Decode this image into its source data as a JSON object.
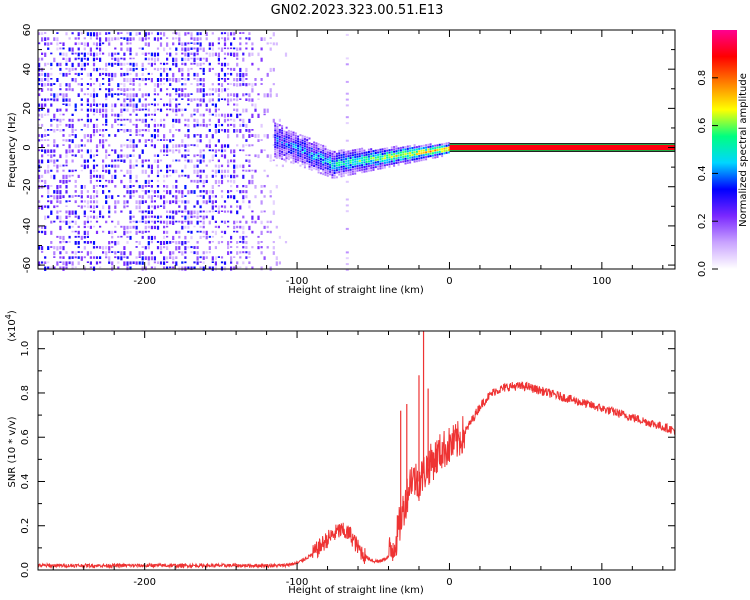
{
  "title": "GN02.2023.323.00.51.E13",
  "chart_data": [
    {
      "type": "heatmap",
      "description_kind": "spectrogram",
      "xlabel": "Height of straight line (km)",
      "ylabel": "Frequency (Hz)",
      "xlim": [
        -270,
        148
      ],
      "ylim": [
        -62,
        60
      ],
      "xticks": [
        -200,
        -100,
        0,
        100
      ],
      "yticks": [
        60,
        40,
        20,
        0,
        -20,
        -40,
        -60
      ],
      "colorbar": {
        "label": "Normalized spectral amplitude",
        "range": [
          0,
          1
        ],
        "ticks": [
          0.0,
          0.2,
          0.4,
          0.6,
          0.8
        ],
        "colors": [
          "#ffffff",
          "#c9a3ff",
          "#7a28ff",
          "#0000ff",
          "#00d6ff",
          "#00ff80",
          "#ffff00",
          "#ff8000",
          "#ff0000",
          "#ff0090"
        ]
      },
      "regions": [
        {
          "name": "noise",
          "x_range": [
            -270,
            -115
          ],
          "freq_range": [
            -62,
            60
          ],
          "amplitude": 0.1
        },
        {
          "name": "transition",
          "x_range": [
            -115,
            0
          ],
          "center_freq": [
            5,
            -8,
            -4,
            0
          ],
          "amplitude": 0.35
        },
        {
          "name": "carrier",
          "x_range": [
            0,
            148
          ],
          "freq": 0,
          "amplitude": 0.9
        }
      ]
    },
    {
      "type": "line",
      "xlabel": "Height of straight line (km)",
      "ylabel": "SNR (10 * v/v)",
      "scale_label": "(x10^4)",
      "xlim": [
        -270,
        148
      ],
      "ylim": [
        0,
        1.08
      ],
      "xticks": [
        -200,
        -100,
        0,
        100
      ],
      "yticks": [
        0.0,
        0.2,
        0.4,
        0.6,
        0.8,
        1.0
      ],
      "series": [
        {
          "name": "SNR",
          "color": "#ee3333",
          "x": [
            -270,
            -200,
            -150,
            -110,
            -100,
            -90,
            -80,
            -72,
            -65,
            -60,
            -55,
            -50,
            -45,
            -40,
            -35,
            -30,
            -25,
            -20,
            -15,
            -10,
            -5,
            0,
            5,
            10,
            15,
            20,
            25,
            30,
            40,
            50,
            60,
            80,
            100,
            120,
            148
          ],
          "y": [
            0.02,
            0.02,
            0.02,
            0.02,
            0.03,
            0.07,
            0.14,
            0.18,
            0.16,
            0.1,
            0.06,
            0.04,
            0.04,
            0.06,
            0.14,
            0.28,
            0.42,
            0.4,
            0.46,
            0.5,
            0.54,
            0.56,
            0.58,
            0.62,
            0.68,
            0.74,
            0.78,
            0.81,
            0.83,
            0.83,
            0.81,
            0.77,
            0.73,
            0.69,
            0.63
          ]
        }
      ],
      "spikes": [
        {
          "x": -32,
          "y": 0.72
        },
        {
          "x": -28,
          "y": 0.75
        },
        {
          "x": -20,
          "y": 0.88
        },
        {
          "x": -17,
          "y": 1.08
        },
        {
          "x": -14,
          "y": 0.82
        }
      ]
    }
  ]
}
